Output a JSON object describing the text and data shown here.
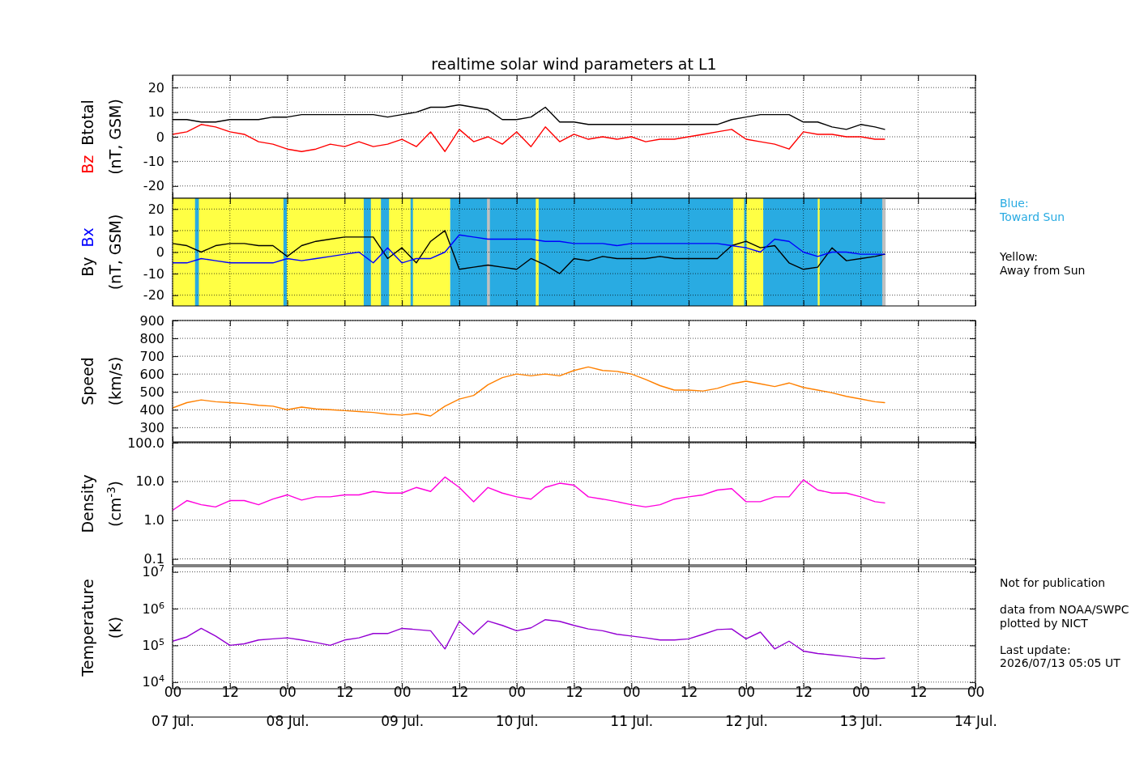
{
  "chart_data": [
    {
      "type": "line",
      "title": "realtime solar wind parameters at L1",
      "ylabel": "(nT, GSM)",
      "tick_labels": "y",
      "grid": true,
      "x": [
        "--07-07T00:00",
        "--07-07T03:00",
        "--07-07T06:00",
        "--07-07T09:00",
        "--07-07T12:00",
        "--07-07T15:00",
        "--07-07T18:00",
        "--07-07T21:00",
        "--07-08T00:00",
        "--07-08T03:00",
        "--07-08T06:00",
        "--07-08T09:00",
        "--07-08T12:00",
        "--07-08T15:00",
        "--07-08T18:00",
        "--07-08T21:00",
        "--07-09T00:00",
        "--07-09T03:00",
        "--07-09T06:00",
        "--07-09T09:00",
        "--07-09T12:00",
        "--07-09T15:00",
        "--07-09T18:00",
        "--07-09T21:00",
        "--07-10T00:00",
        "--07-10T03:00",
        "--07-10T06:00",
        "--07-10T09:00",
        "--07-10T12:00",
        "--07-10T15:00",
        "--07-10T18:00",
        "--07-10T21:00",
        "--07-11T00:00",
        "--07-11T03:00",
        "--07-11T06:00",
        "--07-11T09:00",
        "--07-11T12:00",
        "--07-11T15:00",
        "--07-11T18:00",
        "--07-11T21:00",
        "--07-12T00:00",
        "--07-12T03:00",
        "--07-12T06:00",
        "--07-12T09:00",
        "--07-12T12:00",
        "--07-12T15:00",
        "--07-12T18:00",
        "--07-12T21:00",
        "--07-13T00:00",
        "--07-13T03:00",
        "--07-13T05:00"
      ],
      "xlim": [
        "--07-07T00:00",
        "--07-14T00:00"
      ],
      "xticks": [
        {
          "value": "--07-07T00:00",
          "label": null
        },
        {
          "value": "--07-07T12:00",
          "label": null
        },
        {
          "value": "--07-08T00:00",
          "label": null
        },
        {
          "value": "--07-08T12:00",
          "label": null
        },
        {
          "value": "--07-09T00:00",
          "label": null
        },
        {
          "value": "--07-09T12:00",
          "label": null
        },
        {
          "value": "--07-10T00:00",
          "label": null
        },
        {
          "value": "--07-10T12:00",
          "label": null
        },
        {
          "value": "--07-11T00:00",
          "label": null
        },
        {
          "value": "--07-11T12:00",
          "label": null
        },
        {
          "value": "--07-12T00:00",
          "label": null
        },
        {
          "value": "--07-12T12:00",
          "label": null
        },
        {
          "value": "--07-13T00:00",
          "label": null
        },
        {
          "value": "--07-13T12:00",
          "label": null
        },
        {
          "value": "--07-14T00:00",
          "label": null
        }
      ],
      "ylim": [
        -25,
        25
      ],
      "yticks": [
        -20,
        -10,
        0,
        10,
        20
      ],
      "series": [
        {
          "name": "Bz",
          "color": "#ff0000",
          "values": [
            1,
            2,
            5,
            4,
            2,
            1,
            -2,
            -3,
            -5,
            -6,
            -5,
            -3,
            -4,
            -2,
            -4,
            -3,
            -1,
            -4,
            2,
            -6,
            3,
            -2,
            0,
            -3,
            2,
            -4,
            4,
            -2,
            1,
            -1,
            0,
            -1,
            0,
            -2,
            -1,
            -1,
            0,
            1,
            2,
            3,
            -1,
            -2,
            -3,
            -5,
            2,
            1,
            1,
            0,
            0,
            -1,
            -1
          ]
        },
        {
          "name": "Btotal",
          "color": "#000000",
          "values": [
            7,
            7,
            6,
            6,
            7,
            7,
            7,
            8,
            8,
            9,
            9,
            9,
            9,
            9,
            9,
            8,
            9,
            10,
            12,
            12,
            13,
            12,
            11,
            7,
            7,
            8,
            12,
            6,
            6,
            5,
            5,
            5,
            5,
            5,
            5,
            5,
            5,
            5,
            5,
            7,
            8,
            9,
            9,
            9,
            6,
            6,
            4,
            3,
            5,
            4,
            3
          ]
        }
      ]
    },
    {
      "type": "line",
      "ylabel": "(nT, GSM)",
      "tick_labels": "y",
      "grid": true,
      "x": [
        "--07-07T00:00",
        "--07-07T03:00",
        "--07-07T06:00",
        "--07-07T09:00",
        "--07-07T12:00",
        "--07-07T15:00",
        "--07-07T18:00",
        "--07-07T21:00",
        "--07-08T00:00",
        "--07-08T03:00",
        "--07-08T06:00",
        "--07-08T09:00",
        "--07-08T12:00",
        "--07-08T15:00",
        "--07-08T18:00",
        "--07-08T21:00",
        "--07-09T00:00",
        "--07-09T03:00",
        "--07-09T06:00",
        "--07-09T09:00",
        "--07-09T12:00",
        "--07-09T15:00",
        "--07-09T18:00",
        "--07-09T21:00",
        "--07-10T00:00",
        "--07-10T03:00",
        "--07-10T06:00",
        "--07-10T09:00",
        "--07-10T12:00",
        "--07-10T15:00",
        "--07-10T18:00",
        "--07-10T21:00",
        "--07-11T00:00",
        "--07-11T03:00",
        "--07-11T06:00",
        "--07-11T09:00",
        "--07-11T12:00",
        "--07-11T15:00",
        "--07-11T18:00",
        "--07-11T21:00",
        "--07-12T00:00",
        "--07-12T03:00",
        "--07-12T06:00",
        "--07-12T09:00",
        "--07-12T12:00",
        "--07-12T15:00",
        "--07-12T18:00",
        "--07-12T21:00",
        "--07-13T00:00",
        "--07-13T03:00",
        "--07-13T05:00"
      ],
      "xlim": [
        "--07-07T00:00",
        "--07-14T00:00"
      ],
      "xticks": [
        {
          "value": "--07-07T00:00",
          "label": null
        },
        {
          "value": "--07-07T12:00",
          "label": null
        },
        {
          "value": "--07-08T00:00",
          "label": null
        },
        {
          "value": "--07-08T12:00",
          "label": null
        },
        {
          "value": "--07-09T00:00",
          "label": null
        },
        {
          "value": "--07-09T12:00",
          "label": null
        },
        {
          "value": "--07-10T00:00",
          "label": null
        },
        {
          "value": "--07-10T12:00",
          "label": null
        },
        {
          "value": "--07-11T00:00",
          "label": null
        },
        {
          "value": "--07-11T12:00",
          "label": null
        },
        {
          "value": "--07-12T00:00",
          "label": null
        },
        {
          "value": "--07-12T12:00",
          "label": null
        },
        {
          "value": "--07-13T00:00",
          "label": null
        },
        {
          "value": "--07-13T12:00",
          "label": null
        },
        {
          "value": "--07-14T00:00",
          "label": null
        }
      ],
      "ylim": [
        -25,
        25
      ],
      "yticks": [
        -20,
        -10,
        0,
        10,
        20
      ],
      "bands": [
        {
          "axis": "x",
          "from": "--07-07T00:00",
          "to": "--07-09T10:06",
          "color": "#ffff44"
        },
        {
          "axis": "x",
          "from": "--07-07T04:42",
          "to": "--07-07T05:30",
          "color": "#29abe2"
        },
        {
          "axis": "x",
          "from": "--07-07T23:12",
          "to": "--07-07T23:54",
          "color": "#29abe2"
        },
        {
          "axis": "x",
          "from": "--07-08T16:00",
          "to": "--07-08T17:30",
          "color": "#29abe2"
        },
        {
          "axis": "x",
          "from": "--07-08T19:36",
          "to": "--07-08T21:18",
          "color": "#29abe2"
        },
        {
          "axis": "x",
          "from": "--07-09T01:48",
          "to": "--07-09T02:18",
          "color": "#29abe2"
        },
        {
          "axis": "x",
          "from": "--07-09T10:06",
          "to": "--07-11T21:18",
          "color": "#29abe2"
        },
        {
          "axis": "x",
          "from": "--07-09T17:48",
          "to": "--07-09T18:24",
          "color": "#c0c0c0"
        },
        {
          "axis": "x",
          "from": "--07-10T04:00",
          "to": "--07-10T04:36",
          "color": "#ffff44"
        },
        {
          "axis": "x",
          "from": "--07-11T21:18",
          "to": "--07-12T03:36",
          "color": "#ffff44"
        },
        {
          "axis": "x",
          "from": "--07-11T23:36",
          "to": "--07-12T00:06",
          "color": "#29abe2"
        },
        {
          "axis": "x",
          "from": "--07-12T03:36",
          "to": "--07-13T04:30",
          "color": "#29abe2"
        },
        {
          "axis": "x",
          "from": "--07-12T15:00",
          "to": "--07-12T15:24",
          "color": "#ffff44"
        },
        {
          "axis": "x",
          "from": "--07-13T04:30",
          "to": "--07-13T05:12",
          "color": "#c0c0c0"
        }
      ],
      "annotations": [
        "Blue:\nToward Sun",
        "Yellow:\nAway from Sun"
      ],
      "series": [
        {
          "name": "By",
          "color": "#000000",
          "values": [
            4,
            3,
            0,
            3,
            4,
            4,
            3,
            3,
            -2,
            3,
            5,
            6,
            7,
            7,
            7,
            -3,
            2,
            -5,
            5,
            10,
            -8,
            -7,
            -6,
            -7,
            -8,
            -3,
            -6,
            -10,
            -3,
            -4,
            -2,
            -3,
            -3,
            -3,
            -2,
            -3,
            -3,
            -3,
            -3,
            3,
            5,
            2,
            3,
            -5,
            -8,
            -7,
            2,
            -4,
            -3,
            -2,
            -1
          ]
        },
        {
          "name": "Bx",
          "color": "#0000ff",
          "values": [
            -5,
            -5,
            -3,
            -4,
            -5,
            -5,
            -5,
            -5,
            -3,
            -4,
            -3,
            -2,
            -1,
            0,
            -5,
            2,
            -5,
            -3,
            -3,
            0,
            8,
            7,
            6,
            6,
            6,
            6,
            5,
            5,
            4,
            4,
            4,
            3,
            4,
            4,
            4,
            4,
            4,
            4,
            4,
            3,
            2,
            0,
            6,
            5,
            0,
            -2,
            0,
            0,
            -1,
            -1,
            -1
          ]
        }
      ]
    },
    {
      "type": "line",
      "ylabel": "Speed\n(km/s)",
      "tick_labels": "y",
      "grid": true,
      "x": [
        "--07-07T00:00",
        "--07-07T03:00",
        "--07-07T06:00",
        "--07-07T09:00",
        "--07-07T12:00",
        "--07-07T15:00",
        "--07-07T18:00",
        "--07-07T21:00",
        "--07-08T00:00",
        "--07-08T03:00",
        "--07-08T06:00",
        "--07-08T09:00",
        "--07-08T12:00",
        "--07-08T15:00",
        "--07-08T18:00",
        "--07-08T21:00",
        "--07-09T00:00",
        "--07-09T03:00",
        "--07-09T06:00",
        "--07-09T09:00",
        "--07-09T12:00",
        "--07-09T15:00",
        "--07-09T18:00",
        "--07-09T21:00",
        "--07-10T00:00",
        "--07-10T03:00",
        "--07-10T06:00",
        "--07-10T09:00",
        "--07-10T12:00",
        "--07-10T15:00",
        "--07-10T18:00",
        "--07-10T21:00",
        "--07-11T00:00",
        "--07-11T03:00",
        "--07-11T06:00",
        "--07-11T09:00",
        "--07-11T12:00",
        "--07-11T15:00",
        "--07-11T18:00",
        "--07-11T21:00",
        "--07-12T00:00",
        "--07-12T03:00",
        "--07-12T06:00",
        "--07-12T09:00",
        "--07-12T12:00",
        "--07-12T15:00",
        "--07-12T18:00",
        "--07-12T21:00",
        "--07-13T00:00",
        "--07-13T03:00",
        "--07-13T05:00"
      ],
      "xlim": [
        "--07-07T00:00",
        "--07-14T00:00"
      ],
      "xticks": [
        {
          "value": "--07-07T00:00",
          "label": null
        },
        {
          "value": "--07-07T12:00",
          "label": null
        },
        {
          "value": "--07-08T00:00",
          "label": null
        },
        {
          "value": "--07-08T12:00",
          "label": null
        },
        {
          "value": "--07-09T00:00",
          "label": null
        },
        {
          "value": "--07-09T12:00",
          "label": null
        },
        {
          "value": "--07-10T00:00",
          "label": null
        },
        {
          "value": "--07-10T12:00",
          "label": null
        },
        {
          "value": "--07-11T00:00",
          "label": null
        },
        {
          "value": "--07-11T12:00",
          "label": null
        },
        {
          "value": "--07-12T00:00",
          "label": null
        },
        {
          "value": "--07-12T12:00",
          "label": null
        },
        {
          "value": "--07-13T00:00",
          "label": null
        },
        {
          "value": "--07-13T12:00",
          "label": null
        },
        {
          "value": "--07-14T00:00",
          "label": null
        }
      ],
      "ylim": [
        220,
        900
      ],
      "yticks": [
        300,
        400,
        500,
        600,
        700,
        800,
        900
      ],
      "series": [
        {
          "color": "#ff8000",
          "values": [
            410,
            440,
            455,
            445,
            440,
            435,
            425,
            420,
            400,
            415,
            405,
            400,
            395,
            390,
            385,
            375,
            370,
            380,
            365,
            420,
            460,
            480,
            540,
            580,
            600,
            590,
            600,
            590,
            620,
            640,
            620,
            615,
            600,
            570,
            535,
            510,
            510,
            505,
            520,
            545,
            560,
            545,
            530,
            550,
            525,
            510,
            495,
            475,
            460,
            445,
            440
          ]
        }
      ]
    },
    {
      "type": "line",
      "ylabel": "Density\n(cm$^{-3}$)",
      "tick_labels": "y",
      "grid": true,
      "log": true,
      "x": [
        "--07-07T00:00",
        "--07-07T03:00",
        "--07-07T06:00",
        "--07-07T09:00",
        "--07-07T12:00",
        "--07-07T15:00",
        "--07-07T18:00",
        "--07-07T21:00",
        "--07-08T00:00",
        "--07-08T03:00",
        "--07-08T06:00",
        "--07-08T09:00",
        "--07-08T12:00",
        "--07-08T15:00",
        "--07-08T18:00",
        "--07-08T21:00",
        "--07-09T00:00",
        "--07-09T03:00",
        "--07-09T06:00",
        "--07-09T09:00",
        "--07-09T12:00",
        "--07-09T15:00",
        "--07-09T18:00",
        "--07-09T21:00",
        "--07-10T00:00",
        "--07-10T03:00",
        "--07-10T06:00",
        "--07-10T09:00",
        "--07-10T12:00",
        "--07-10T15:00",
        "--07-10T18:00",
        "--07-10T21:00",
        "--07-11T00:00",
        "--07-11T03:00",
        "--07-11T06:00",
        "--07-11T09:00",
        "--07-11T12:00",
        "--07-11T15:00",
        "--07-11T18:00",
        "--07-11T21:00",
        "--07-12T00:00",
        "--07-12T03:00",
        "--07-12T06:00",
        "--07-12T09:00",
        "--07-12T12:00",
        "--07-12T15:00",
        "--07-12T18:00",
        "--07-12T21:00",
        "--07-13T00:00",
        "--07-13T03:00",
        "--07-13T05:00"
      ],
      "xlim": [
        "--07-07T00:00",
        "--07-14T00:00"
      ],
      "xticks": [
        {
          "value": "--07-07T00:00",
          "label": null
        },
        {
          "value": "--07-07T12:00",
          "label": null
        },
        {
          "value": "--07-08T00:00",
          "label": null
        },
        {
          "value": "--07-08T12:00",
          "label": null
        },
        {
          "value": "--07-09T00:00",
          "label": null
        },
        {
          "value": "--07-09T12:00",
          "label": null
        },
        {
          "value": "--07-10T00:00",
          "label": null
        },
        {
          "value": "--07-10T12:00",
          "label": null
        },
        {
          "value": "--07-11T00:00",
          "label": null
        },
        {
          "value": "--07-11T12:00",
          "label": null
        },
        {
          "value": "--07-12T00:00",
          "label": null
        },
        {
          "value": "--07-12T12:00",
          "label": null
        },
        {
          "value": "--07-13T00:00",
          "label": null
        },
        {
          "value": "--07-13T12:00",
          "label": null
        },
        {
          "value": "--07-14T00:00",
          "label": null
        }
      ],
      "ylim": [
        0.07,
        100
      ],
      "yticks": [
        {
          "value": 0.1,
          "label": "0.1"
        },
        {
          "value": 1,
          "label": "1.0"
        },
        {
          "value": 10,
          "label": "10.0"
        },
        {
          "value": 100,
          "label": "100.0"
        }
      ],
      "series": [
        {
          "color": "#ff00dd",
          "values": [
            1.8,
            3.2,
            2.5,
            2.2,
            3.2,
            3.2,
            2.5,
            3.5,
            4.5,
            3.3,
            4,
            4,
            4.5,
            4.5,
            5.5,
            5,
            5,
            7,
            5.5,
            13,
            7,
            3,
            7,
            5,
            4,
            3.5,
            7,
            9,
            8,
            4,
            3.5,
            3,
            2.5,
            2.2,
            2.5,
            3.5,
            4,
            4.5,
            6,
            6.5,
            3,
            3,
            4,
            4,
            11,
            6,
            5,
            5,
            4,
            3,
            2.8
          ]
        }
      ]
    },
    {
      "type": "line",
      "ylabel": "Temperature\n(K)",
      "grid": true,
      "log": true,
      "x": [
        "--07-07T00:00",
        "--07-07T03:00",
        "--07-07T06:00",
        "--07-07T09:00",
        "--07-07T12:00",
        "--07-07T15:00",
        "--07-07T18:00",
        "--07-07T21:00",
        "--07-08T00:00",
        "--07-08T03:00",
        "--07-08T06:00",
        "--07-08T09:00",
        "--07-08T12:00",
        "--07-08T15:00",
        "--07-08T18:00",
        "--07-08T21:00",
        "--07-09T00:00",
        "--07-09T03:00",
        "--07-09T06:00",
        "--07-09T09:00",
        "--07-09T12:00",
        "--07-09T15:00",
        "--07-09T18:00",
        "--07-09T21:00",
        "--07-10T00:00",
        "--07-10T03:00",
        "--07-10T06:00",
        "--07-10T09:00",
        "--07-10T12:00",
        "--07-10T15:00",
        "--07-10T18:00",
        "--07-10T21:00",
        "--07-11T00:00",
        "--07-11T03:00",
        "--07-11T06:00",
        "--07-11T09:00",
        "--07-11T12:00",
        "--07-11T15:00",
        "--07-11T18:00",
        "--07-11T21:00",
        "--07-12T00:00",
        "--07-12T03:00",
        "--07-12T06:00",
        "--07-12T09:00",
        "--07-12T12:00",
        "--07-12T15:00",
        "--07-12T18:00",
        "--07-12T21:00",
        "--07-13T00:00",
        "--07-13T03:00",
        "--07-13T05:00"
      ],
      "xlim": [
        "--07-07T00:00",
        "--07-14T00:00"
      ],
      "xticks": [
        {
          "value": "--07-07T00:00",
          "label": "00\n07 Jul."
        },
        {
          "value": "--07-07T12:00",
          "label": "12"
        },
        {
          "value": "--07-08T00:00",
          "label": "00\n08 Jul."
        },
        {
          "value": "--07-08T12:00",
          "label": "12"
        },
        {
          "value": "--07-09T00:00",
          "label": "00\n09 Jul."
        },
        {
          "value": "--07-09T12:00",
          "label": "12"
        },
        {
          "value": "--07-10T00:00",
          "label": "00\n10 Jul."
        },
        {
          "value": "--07-10T12:00",
          "label": "12"
        },
        {
          "value": "--07-11T00:00",
          "label": "00\n11 Jul."
        },
        {
          "value": "--07-11T12:00",
          "label": "12"
        },
        {
          "value": "--07-12T00:00",
          "label": "00\n12 Jul."
        },
        {
          "value": "--07-12T12:00",
          "label": "12"
        },
        {
          "value": "--07-13T00:00",
          "label": "00\n13 Jul."
        },
        {
          "value": "--07-13T12:00",
          "label": "12"
        },
        {
          "value": "--07-14T00:00",
          "label": "00\n14 Jul."
        }
      ],
      "ylim": [
        6600,
        14000000
      ],
      "yticks": [
        {
          "value": 10000,
          "label": "10$^{4}$"
        },
        {
          "value": 100000,
          "label": "10$^{5}$"
        },
        {
          "value": 1000000,
          "label": "10$^{6}$"
        },
        {
          "value": 10000000,
          "label": "10$^{7}$"
        }
      ],
      "annotations": [
        "Not for publication",
        "data from NOAA/SWPC\nplotted by NICT",
        "Last update:\n2026/07/13 05:05 UT"
      ],
      "series": [
        {
          "color": "#9400d3",
          "values": [
            130000,
            170000,
            290000,
            180000,
            100000,
            110000,
            140000,
            150000,
            160000,
            140000,
            120000,
            100000,
            140000,
            160000,
            210000,
            210000,
            290000,
            270000,
            250000,
            80000,
            450000,
            200000,
            460000,
            350000,
            250000,
            300000,
            500000,
            450000,
            350000,
            280000,
            250000,
            200000,
            180000,
            160000,
            140000,
            140000,
            150000,
            200000,
            270000,
            280000,
            150000,
            230000,
            80000,
            130000,
            70000,
            60000,
            55000,
            50000,
            45000,
            43000,
            45000
          ]
        }
      ]
    }
  ]
}
